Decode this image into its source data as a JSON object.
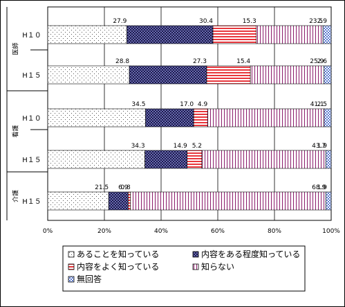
{
  "chart_data": {
    "type": "bar",
    "stacked": "horizontal-100%",
    "groups": [
      {
        "label": "医師",
        "rows": [
          "H10",
          "H15"
        ]
      },
      {
        "label": "看護",
        "rows": [
          "H10",
          "H15"
        ]
      },
      {
        "label": "介護",
        "rows": [
          "H15"
        ]
      }
    ],
    "rows": [
      {
        "group": "医師",
        "label": "H１０",
        "values": [
          27.9,
          30.4,
          15.3,
          23.5,
          2.9
        ]
      },
      {
        "group": "医師",
        "label": "H１５",
        "values": [
          28.8,
          27.3,
          15.4,
          25.9,
          2.6
        ]
      },
      {
        "group": "看護",
        "label": "H１０",
        "values": [
          34.5,
          17.0,
          4.9,
          41.1,
          2.5
        ]
      },
      {
        "group": "看護",
        "label": "H１５",
        "values": [
          34.3,
          14.9,
          5.2,
          43.7,
          1.9
        ]
      },
      {
        "group": "介護",
        "label": "H１５",
        "values": [
          21.5,
          6.9,
          0.8,
          68.9,
          1.9
        ]
      }
    ],
    "labels": [
      [
        "27.9",
        "30.4",
        "15.3",
        "23.5",
        "2.9"
      ],
      [
        "28.8",
        "27.3",
        "15.4",
        "25.9",
        "2.6"
      ],
      [
        "34.5",
        "17.0",
        "4.9",
        "41.1",
        "2.5"
      ],
      [
        "34.3",
        "14.9",
        "5.2",
        "43.7",
        "1.9"
      ],
      [
        "21.5",
        "6.9",
        "0.8",
        "68.9",
        "1.9"
      ]
    ],
    "series": [
      {
        "name": "あることを知っている",
        "pattern": "dots"
      },
      {
        "name": "内容をある程度知っている",
        "pattern": "dense-check"
      },
      {
        "name": "内容をよく知っている",
        "pattern": "red-horizontal"
      },
      {
        "name": "知らない",
        "pattern": "purple-vertical"
      },
      {
        "name": "無回答",
        "pattern": "blue-diamond"
      }
    ],
    "x_ticks": [
      "0%",
      "20%",
      "40%",
      "60%",
      "80%",
      "100%"
    ],
    "xlim": [
      0,
      100
    ],
    "grid": "vertical",
    "legend_position": "bottom"
  }
}
